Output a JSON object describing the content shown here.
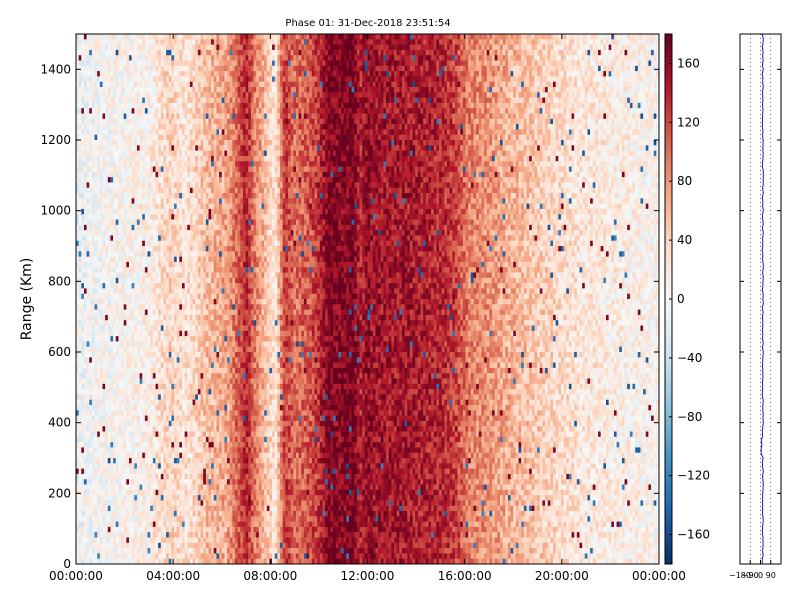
{
  "chart_data": [
    {
      "type": "heatmap",
      "title": "Phase 01: 31-Dec-2018 23:51:54",
      "ylabel": "Range (Km)",
      "xlabel": "",
      "x_ticks": [
        "00:00:00",
        "04:00:00",
        "08:00:00",
        "12:00:00",
        "16:00:00",
        "20:00:00",
        "00:00:00"
      ],
      "xlim": [
        0,
        24
      ],
      "y_ticks": [
        0,
        200,
        400,
        600,
        800,
        1000,
        1200,
        1400
      ],
      "ylim": [
        0,
        1500
      ],
      "colorbar": {
        "ticks": [
          -160,
          -120,
          -80,
          -40,
          0,
          40,
          80,
          120,
          160
        ],
        "range": [
          -180,
          180
        ],
        "colormap": "RdBu_r"
      },
      "column_phase_profile": {
        "hours": [
          0,
          1,
          2,
          3,
          3.8,
          4.6,
          5.4,
          6.2,
          6.7,
          7.0,
          7.4,
          8.2,
          8.6,
          9.0,
          9.5,
          10.0,
          10.4,
          11.0,
          11.4,
          11.7,
          12.0,
          12.4,
          13.0,
          14.0,
          15.0,
          15.6,
          16.2,
          17.0,
          18.0,
          19.0,
          20.0,
          21.0,
          22.0,
          23.0,
          24.0
        ],
        "values": [
          -10,
          0,
          5,
          10,
          40,
          25,
          55,
          70,
          110,
          140,
          90,
          20,
          130,
          100,
          110,
          130,
          170,
          165,
          175,
          140,
          160,
          150,
          150,
          145,
          140,
          125,
          90,
          80,
          60,
          45,
          30,
          20,
          15,
          10,
          5
        ]
      }
    },
    {
      "type": "line",
      "x_ticks": [
        "−180",
        "−90",
        "0",
        "90"
      ],
      "xlim": [
        -180,
        180
      ],
      "ylim": [
        0,
        1500
      ],
      "gridlines_x": [
        -90,
        0,
        90
      ]
    }
  ],
  "colors": {
    "profile_line": "#1a1aaa",
    "axis": "#000000"
  }
}
